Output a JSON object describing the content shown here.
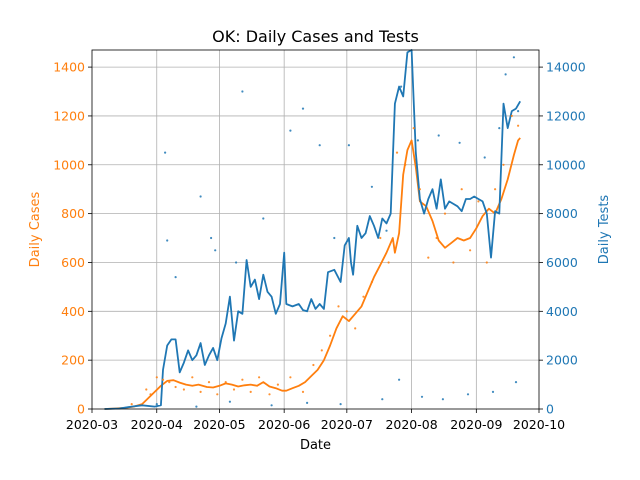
{
  "chart_data": {
    "type": "line",
    "title": "OK: Daily Cases and Tests",
    "xlabel": "Date",
    "ylabel_left": "Daily Cases",
    "ylabel_right": "Daily Tests",
    "grid": true,
    "colors": {
      "cases": "#ff7f0e",
      "tests": "#1f77b4",
      "grid": "#b0b0b0"
    },
    "xlim": [
      "2020-03-01",
      "2020-10-01"
    ],
    "ylim_left": [
      0,
      1470
    ],
    "ylim_right": [
      0,
      14700
    ],
    "x_ticks": [
      "2020-03-01",
      "2020-04-01",
      "2020-05-01",
      "2020-06-01",
      "2020-07-01",
      "2020-08-01",
      "2020-09-01",
      "2020-10-01"
    ],
    "x_tick_labels": [
      "2020-03",
      "2020-04",
      "2020-05",
      "2020-06",
      "2020-07",
      "2020-08",
      "2020-09",
      "2020-10"
    ],
    "y_left_ticks": [
      0,
      200,
      400,
      600,
      800,
      1000,
      1200,
      1400
    ],
    "y_right_ticks": [
      0,
      2000,
      4000,
      6000,
      8000,
      10000,
      12000,
      14000
    ],
    "series": [
      {
        "axis": "left",
        "kind": "line",
        "points": [
          [
            "2020-03-07",
            0
          ],
          [
            "2020-03-12",
            2
          ],
          [
            "2020-03-17",
            5
          ],
          [
            "2020-03-21",
            10
          ],
          [
            "2020-03-25",
            20
          ],
          [
            "2020-03-28",
            45
          ],
          [
            "2020-03-31",
            70
          ],
          [
            "2020-04-03",
            95
          ],
          [
            "2020-04-06",
            115
          ],
          [
            "2020-04-09",
            118
          ],
          [
            "2020-04-12",
            108
          ],
          [
            "2020-04-15",
            100
          ],
          [
            "2020-04-18",
            95
          ],
          [
            "2020-04-21",
            100
          ],
          [
            "2020-04-25",
            90
          ],
          [
            "2020-04-28",
            88
          ],
          [
            "2020-05-01",
            95
          ],
          [
            "2020-05-04",
            105
          ],
          [
            "2020-05-07",
            100
          ],
          [
            "2020-05-10",
            92
          ],
          [
            "2020-05-13",
            97
          ],
          [
            "2020-05-16",
            100
          ],
          [
            "2020-05-19",
            95
          ],
          [
            "2020-05-22",
            110
          ],
          [
            "2020-05-25",
            92
          ],
          [
            "2020-05-28",
            85
          ],
          [
            "2020-05-31",
            75
          ],
          [
            "2020-06-02",
            75
          ],
          [
            "2020-06-05",
            85
          ],
          [
            "2020-06-08",
            95
          ],
          [
            "2020-06-11",
            110
          ],
          [
            "2020-06-14",
            135
          ],
          [
            "2020-06-17",
            160
          ],
          [
            "2020-06-20",
            200
          ],
          [
            "2020-06-23",
            260
          ],
          [
            "2020-06-26",
            330
          ],
          [
            "2020-06-29",
            380
          ],
          [
            "2020-07-02",
            360
          ],
          [
            "2020-07-05",
            390
          ],
          [
            "2020-07-08",
            420
          ],
          [
            "2020-07-11",
            480
          ],
          [
            "2020-07-14",
            540
          ],
          [
            "2020-07-17",
            590
          ],
          [
            "2020-07-20",
            640
          ],
          [
            "2020-07-23",
            700
          ],
          [
            "2020-07-24",
            640
          ],
          [
            "2020-07-26",
            720
          ],
          [
            "2020-07-28",
            960
          ],
          [
            "2020-07-30",
            1060
          ],
          [
            "2020-08-01",
            1100
          ],
          [
            "2020-08-03",
            990
          ],
          [
            "2020-08-05",
            850
          ],
          [
            "2020-08-08",
            830
          ],
          [
            "2020-08-11",
            770
          ],
          [
            "2020-08-14",
            690
          ],
          [
            "2020-08-17",
            660
          ],
          [
            "2020-08-20",
            680
          ],
          [
            "2020-08-23",
            700
          ],
          [
            "2020-08-26",
            690
          ],
          [
            "2020-08-29",
            700
          ],
          [
            "2020-09-01",
            740
          ],
          [
            "2020-09-04",
            790
          ],
          [
            "2020-09-07",
            820
          ],
          [
            "2020-09-10",
            800
          ],
          [
            "2020-09-13",
            860
          ],
          [
            "2020-09-16",
            940
          ],
          [
            "2020-09-19",
            1040
          ],
          [
            "2020-09-21",
            1100
          ],
          [
            "2020-09-22",
            1110
          ]
        ]
      },
      {
        "axis": "right",
        "kind": "line",
        "points": [
          [
            "2020-03-07",
            0
          ],
          [
            "2020-03-14",
            20
          ],
          [
            "2020-03-20",
            100
          ],
          [
            "2020-03-25",
            150
          ],
          [
            "2020-03-31",
            100
          ],
          [
            "2020-04-03",
            150
          ],
          [
            "2020-04-04",
            1600
          ],
          [
            "2020-04-06",
            2600
          ],
          [
            "2020-04-08",
            2850
          ],
          [
            "2020-04-10",
            2850
          ],
          [
            "2020-04-12",
            1500
          ],
          [
            "2020-04-14",
            1900
          ],
          [
            "2020-04-16",
            2400
          ],
          [
            "2020-04-18",
            2000
          ],
          [
            "2020-04-20",
            2200
          ],
          [
            "2020-04-22",
            2700
          ],
          [
            "2020-04-24",
            1800
          ],
          [
            "2020-04-26",
            2200
          ],
          [
            "2020-04-28",
            2500
          ],
          [
            "2020-04-30",
            2000
          ],
          [
            "2020-05-02",
            2900
          ],
          [
            "2020-05-04",
            3500
          ],
          [
            "2020-05-06",
            4600
          ],
          [
            "2020-05-08",
            2800
          ],
          [
            "2020-05-10",
            4000
          ],
          [
            "2020-05-12",
            3900
          ],
          [
            "2020-05-14",
            6100
          ],
          [
            "2020-05-16",
            5000
          ],
          [
            "2020-05-18",
            5300
          ],
          [
            "2020-05-20",
            4500
          ],
          [
            "2020-05-22",
            5500
          ],
          [
            "2020-05-24",
            4800
          ],
          [
            "2020-05-26",
            4600
          ],
          [
            "2020-05-28",
            3900
          ],
          [
            "2020-05-30",
            4300
          ],
          [
            "2020-06-01",
            6400
          ],
          [
            "2020-06-02",
            4300
          ],
          [
            "2020-06-05",
            4200
          ],
          [
            "2020-06-08",
            4300
          ],
          [
            "2020-06-10",
            4050
          ],
          [
            "2020-06-12",
            4000
          ],
          [
            "2020-06-14",
            4500
          ],
          [
            "2020-06-16",
            4100
          ],
          [
            "2020-06-18",
            4300
          ],
          [
            "2020-06-20",
            4100
          ],
          [
            "2020-06-22",
            5600
          ],
          [
            "2020-06-25",
            5700
          ],
          [
            "2020-06-28",
            5200
          ],
          [
            "2020-06-30",
            6700
          ],
          [
            "2020-07-02",
            7000
          ],
          [
            "2020-07-03",
            6000
          ],
          [
            "2020-07-04",
            5500
          ],
          [
            "2020-07-06",
            7500
          ],
          [
            "2020-07-08",
            7000
          ],
          [
            "2020-07-10",
            7200
          ],
          [
            "2020-07-12",
            7900
          ],
          [
            "2020-07-14",
            7500
          ],
          [
            "2020-07-16",
            7000
          ],
          [
            "2020-07-18",
            7800
          ],
          [
            "2020-07-20",
            7600
          ],
          [
            "2020-07-22",
            8000
          ],
          [
            "2020-07-24",
            12500
          ],
          [
            "2020-07-26",
            13200
          ],
          [
            "2020-07-28",
            12800
          ],
          [
            "2020-07-30",
            14600
          ],
          [
            "2020-08-01",
            14700
          ],
          [
            "2020-08-03",
            10500
          ],
          [
            "2020-08-05",
            8600
          ],
          [
            "2020-08-07",
            8000
          ],
          [
            "2020-08-09",
            8600
          ],
          [
            "2020-08-11",
            9000
          ],
          [
            "2020-08-13",
            8200
          ],
          [
            "2020-08-15",
            9400
          ],
          [
            "2020-08-17",
            8200
          ],
          [
            "2020-08-19",
            8500
          ],
          [
            "2020-08-21",
            8400
          ],
          [
            "2020-08-23",
            8300
          ],
          [
            "2020-08-25",
            8100
          ],
          [
            "2020-08-27",
            8600
          ],
          [
            "2020-08-29",
            8600
          ],
          [
            "2020-08-31",
            8700
          ],
          [
            "2020-09-02",
            8600
          ],
          [
            "2020-09-04",
            8500
          ],
          [
            "2020-09-06",
            8000
          ],
          [
            "2020-09-08",
            6200
          ],
          [
            "2020-09-10",
            8100
          ],
          [
            "2020-09-12",
            8000
          ],
          [
            "2020-09-14",
            12500
          ],
          [
            "2020-09-16",
            11500
          ],
          [
            "2020-09-18",
            12200
          ],
          [
            "2020-09-20",
            12300
          ],
          [
            "2020-09-22",
            12600
          ]
        ]
      },
      {
        "axis": "left",
        "kind": "scatter",
        "points": [
          [
            "2020-03-20",
            20
          ],
          [
            "2020-03-27",
            80
          ],
          [
            "2020-03-29",
            60
          ],
          [
            "2020-04-01",
            130
          ],
          [
            "2020-04-04",
            120
          ],
          [
            "2020-04-07",
            110
          ],
          [
            "2020-04-10",
            90
          ],
          [
            "2020-04-14",
            80
          ],
          [
            "2020-04-18",
            130
          ],
          [
            "2020-04-22",
            70
          ],
          [
            "2020-04-26",
            110
          ],
          [
            "2020-04-30",
            60
          ],
          [
            "2020-05-04",
            110
          ],
          [
            "2020-05-08",
            80
          ],
          [
            "2020-05-12",
            120
          ],
          [
            "2020-05-16",
            70
          ],
          [
            "2020-05-20",
            130
          ],
          [
            "2020-05-25",
            60
          ],
          [
            "2020-05-29",
            100
          ],
          [
            "2020-06-04",
            130
          ],
          [
            "2020-06-10",
            70
          ],
          [
            "2020-06-15",
            180
          ],
          [
            "2020-06-19",
            240
          ],
          [
            "2020-06-23",
            300
          ],
          [
            "2020-06-27",
            420
          ],
          [
            "2020-07-01",
            400
          ],
          [
            "2020-07-05",
            330
          ],
          [
            "2020-07-09",
            460
          ],
          [
            "2020-07-13",
            520
          ],
          [
            "2020-07-17",
            700
          ],
          [
            "2020-07-21",
            600
          ],
          [
            "2020-07-25",
            1050
          ],
          [
            "2020-07-29",
            1000
          ],
          [
            "2020-08-02",
            1150
          ],
          [
            "2020-08-05",
            900
          ],
          [
            "2020-08-09",
            620
          ],
          [
            "2020-08-13",
            700
          ],
          [
            "2020-08-17",
            800
          ],
          [
            "2020-08-21",
            600
          ],
          [
            "2020-08-25",
            900
          ],
          [
            "2020-08-29",
            650
          ],
          [
            "2020-09-02",
            850
          ],
          [
            "2020-09-06",
            600
          ],
          [
            "2020-09-10",
            900
          ],
          [
            "2020-09-14",
            1000
          ],
          [
            "2020-09-18",
            1200
          ],
          [
            "2020-09-21",
            1160
          ]
        ]
      },
      {
        "axis": "right",
        "kind": "scatter",
        "points": [
          [
            "2020-04-05",
            10500
          ],
          [
            "2020-04-06",
            6900
          ],
          [
            "2020-04-10",
            5400
          ],
          [
            "2020-04-22",
            8700
          ],
          [
            "2020-04-27",
            7000
          ],
          [
            "2020-04-29",
            6500
          ],
          [
            "2020-05-09",
            6000
          ],
          [
            "2020-05-12",
            13000
          ],
          [
            "2020-05-22",
            7800
          ],
          [
            "2020-06-04",
            11400
          ],
          [
            "2020-06-10",
            12300
          ],
          [
            "2020-06-18",
            10800
          ],
          [
            "2020-06-25",
            7000
          ],
          [
            "2020-07-02",
            10800
          ],
          [
            "2020-07-13",
            9100
          ],
          [
            "2020-07-20",
            7300
          ],
          [
            "2020-07-27",
            13200
          ],
          [
            "2020-08-04",
            11000
          ],
          [
            "2020-08-14",
            11200
          ],
          [
            "2020-08-24",
            10900
          ],
          [
            "2020-09-05",
            10300
          ],
          [
            "2020-09-12",
            11500
          ],
          [
            "2020-09-15",
            13700
          ],
          [
            "2020-09-19",
            14400
          ],
          [
            "2020-09-21",
            12200
          ],
          [
            "2020-04-01",
            200
          ],
          [
            "2020-04-20",
            100
          ],
          [
            "2020-05-06",
            300
          ],
          [
            "2020-05-26",
            150
          ],
          [
            "2020-06-12",
            250
          ],
          [
            "2020-06-28",
            200
          ],
          [
            "2020-07-18",
            400
          ],
          [
            "2020-07-26",
            1200
          ],
          [
            "2020-08-06",
            500
          ],
          [
            "2020-08-16",
            400
          ],
          [
            "2020-08-28",
            600
          ],
          [
            "2020-09-09",
            700
          ],
          [
            "2020-09-20",
            1100
          ]
        ]
      }
    ]
  }
}
